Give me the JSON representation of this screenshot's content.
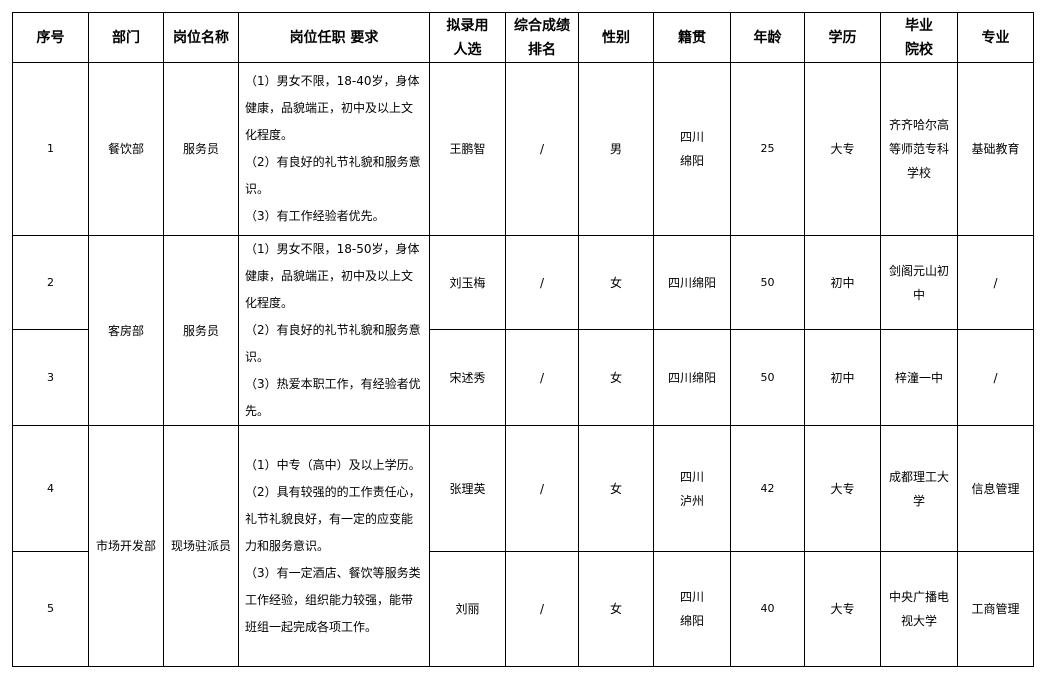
{
  "headers": [
    "序号",
    "部门",
    "岗位名称",
    "岗位任职 要求",
    "拟录用\n人选",
    "综合成绩\n排名",
    "性别",
    "籍贯",
    "年龄",
    "学历",
    "毕业\n院校",
    "专业"
  ],
  "rows": [
    {
      "no": "1",
      "dept": "餐饮部",
      "position": "服务员",
      "req": [
        "（1）男女不限，18-40岁，身体健康，品貌端正，初中及以上文化程度。",
        "（2）有良好的礼节礼貌和服务意识。",
        "（3）有工作经验者优先。"
      ],
      "name": "王鹏智",
      "rank": "/",
      "gender": "男",
      "origin": "四川\n绵阳",
      "age": "25",
      "edu": "大专",
      "school": "齐齐哈尔高\n等师范专科\n学校",
      "major": "基础教育"
    },
    {
      "no": "2",
      "name": "刘玉梅",
      "rank": "/",
      "gender": "女",
      "origin": "四川绵阳",
      "age": "50",
      "edu": "初中",
      "school": "剑阁元山初\n中",
      "major": "/"
    },
    {
      "no": "3",
      "name": "宋述秀",
      "rank": "/",
      "gender": "女",
      "origin": "四川绵阳",
      "age": "50",
      "edu": "初中",
      "school": "梓潼一中",
      "major": "/"
    },
    {
      "no": "4",
      "name": "张理英",
      "rank": "/",
      "gender": "女",
      "origin": "四川\n泸州",
      "age": "42",
      "edu": "大专",
      "school": "成都理工大\n学",
      "major": "信息管理"
    },
    {
      "no": "5",
      "name": "刘丽",
      "rank": "/",
      "gender": "女",
      "origin": "四川\n绵阳",
      "age": "40",
      "edu": "大专",
      "school": "中央广播电\n视大学",
      "major": "工商管理"
    }
  ],
  "groups": [
    {
      "dept": "客房部",
      "position": "服务员",
      "req": [
        "（1）男女不限，18-50岁，身体健康，品貌端正，初中及以上文化程度。",
        "（2）有良好的礼节礼貌和服务意识。",
        "（3）热爱本职工作，有经验者优先。"
      ]
    },
    {
      "dept": "市场开发部",
      "position": "现场驻派员",
      "req": [
        "（1）中专（高中）及以上学历。",
        "（2）具有较强的的工作责任心，礼节礼貌良好，有一定的应变能力和服务意识。",
        "（3）有一定酒店、餐饮等服务类工作经验，组织能力较强，能带班组一起完成各项工作。"
      ]
    }
  ]
}
